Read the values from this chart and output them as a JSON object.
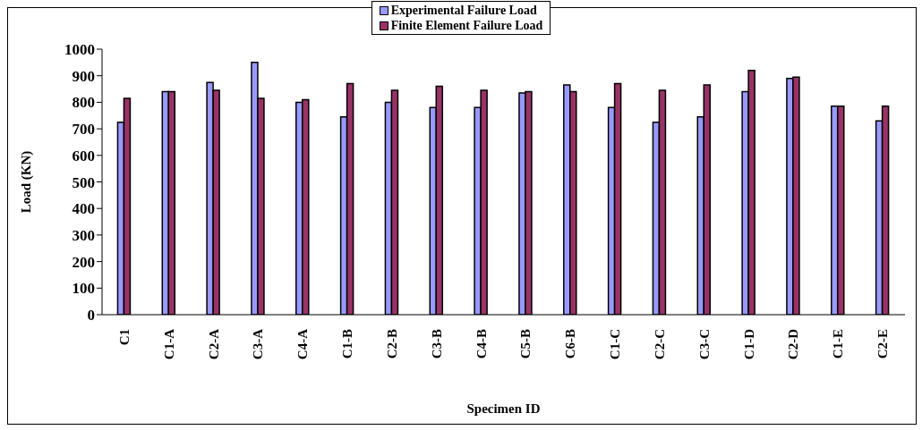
{
  "chart_data": {
    "type": "bar",
    "xlabel": "Specimen ID",
    "ylabel": "Load (KN)",
    "categories": [
      "C1",
      "C1-A",
      "C2-A",
      "C3-A",
      "C4-A",
      "C1-B",
      "C2-B",
      "C3-B",
      "C4-B",
      "C5-B",
      "C6-B",
      "C1-C",
      "C2-C",
      "C3-C",
      "C1-D",
      "C2-D",
      "C1-E",
      "C2-E"
    ],
    "series": [
      {
        "name": "Experimental Failure Load",
        "color": "#9999ff",
        "values": [
          725,
          840,
          875,
          950,
          800,
          745,
          800,
          780,
          780,
          835,
          865,
          780,
          725,
          745,
          840,
          890,
          785,
          730
        ]
      },
      {
        "name": "Finite Element Failure Load",
        "color": "#993366",
        "values": [
          815,
          840,
          845,
          815,
          810,
          870,
          845,
          860,
          845,
          840,
          840,
          870,
          845,
          865,
          920,
          895,
          785,
          785
        ]
      }
    ],
    "ylim": [
      0,
      1000
    ],
    "yticks": [
      0,
      100,
      200,
      300,
      400,
      500,
      600,
      700,
      800,
      900,
      1000
    ],
    "grid": false,
    "legend": "top"
  }
}
